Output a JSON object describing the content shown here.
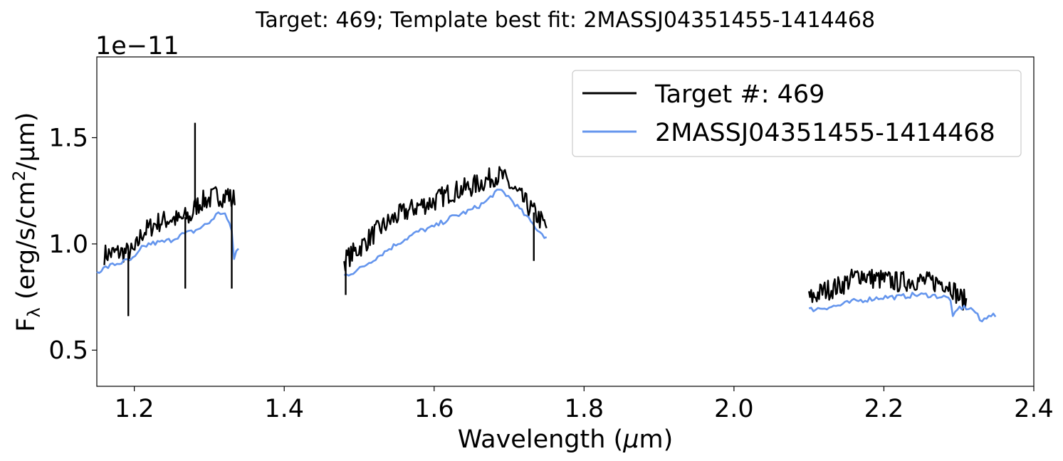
{
  "chart_data": {
    "type": "line",
    "title": "Target: 469; Template best fit: 2MASSJ04351455-1414468",
    "xlabel": "Wavelength (",
    "xlabel_mu": "μ",
    "xlabel_unit": "m)",
    "ylabel": "F",
    "ylabel_sub": "λ",
    "ylabel_unit": " (erg/s/cm",
    "ylabel_sup": "2",
    "ylabel_tail": "/μm)",
    "offset_text": "1e−11",
    "xlim": [
      1.15,
      2.4
    ],
    "ylim": [
      0.33,
      1.88
    ],
    "x_ticks": [
      1.2,
      1.4,
      1.6,
      1.8,
      2.0,
      2.2,
      2.4
    ],
    "x_tick_labels": [
      "1.2",
      "1.4",
      "1.6",
      "1.8",
      "2.0",
      "2.2",
      "2.4"
    ],
    "y_ticks": [
      0.5,
      1.0,
      1.5
    ],
    "y_tick_labels": [
      "0.5",
      "1.0",
      "1.5"
    ],
    "legend_position": "top-right",
    "series": [
      {
        "name": "Target #: 469",
        "color": "#000000",
        "segments": [
          {
            "x": [
              1.16,
              1.18,
              1.2,
              1.21,
              1.23,
              1.25,
              1.26,
              1.27,
              1.275,
              1.28,
              1.29,
              1.3,
              1.31,
              1.32,
              1.325,
              1.33,
              1.334
            ],
            "y": [
              0.95,
              0.96,
              0.96,
              1.05,
              1.1,
              1.12,
              1.11,
              1.13,
              1.12,
              1.17,
              1.2,
              1.21,
              1.23,
              1.22,
              1.24,
              1.2,
              1.22
            ]
          },
          {
            "x": [
              1.48,
              1.5,
              1.52,
              1.55,
              1.58,
              1.6,
              1.62,
              1.65,
              1.67,
              1.68,
              1.69,
              1.7,
              1.71,
              1.72,
              1.74,
              1.75
            ],
            "y": [
              0.92,
              0.98,
              1.05,
              1.13,
              1.18,
              1.2,
              1.24,
              1.27,
              1.3,
              1.32,
              1.32,
              1.28,
              1.24,
              1.2,
              1.12,
              1.08
            ]
          },
          {
            "x": [
              2.1,
              2.12,
              2.14,
              2.16,
              2.17,
              2.18,
              2.2,
              2.22,
              2.24,
              2.26,
              2.28,
              2.29,
              2.3,
              2.31
            ],
            "y": [
              0.74,
              0.78,
              0.8,
              0.84,
              0.86,
              0.84,
              0.83,
              0.82,
              0.83,
              0.82,
              0.82,
              0.8,
              0.75,
              0.73
            ]
          }
        ]
      },
      {
        "name": "2MASSJ04351455-1414468",
        "color": "#6495ed",
        "segments": [
          {
            "x": [
              1.15,
              1.17,
              1.19,
              1.2,
              1.21,
              1.22,
              1.24,
              1.25,
              1.26,
              1.28,
              1.3,
              1.31,
              1.32,
              1.33,
              1.332,
              1.335,
              1.34
            ],
            "y": [
              0.87,
              0.9,
              0.92,
              0.93,
              0.98,
              1.0,
              1.01,
              1.02,
              1.04,
              1.06,
              1.1,
              1.14,
              1.15,
              1.06,
              0.92,
              0.96,
              0.98
            ]
          },
          {
            "x": [
              1.48,
              1.5,
              1.52,
              1.55,
              1.58,
              1.6,
              1.62,
              1.65,
              1.67,
              1.68,
              1.69,
              1.7,
              1.71,
              1.72,
              1.74,
              1.75
            ],
            "y": [
              0.85,
              0.88,
              0.93,
              1.0,
              1.06,
              1.08,
              1.12,
              1.16,
              1.2,
              1.24,
              1.25,
              1.22,
              1.18,
              1.14,
              1.06,
              1.03
            ]
          },
          {
            "x": [
              2.1,
              2.12,
              2.14,
              2.16,
              2.18,
              2.2,
              2.22,
              2.24,
              2.26,
              2.28,
              2.29,
              2.292,
              2.3,
              2.31,
              2.32,
              2.33,
              2.34,
              2.35
            ],
            "y": [
              0.69,
              0.7,
              0.71,
              0.73,
              0.74,
              0.75,
              0.75,
              0.76,
              0.76,
              0.75,
              0.74,
              0.65,
              0.7,
              0.7,
              0.69,
              0.63,
              0.67,
              0.66
            ]
          }
        ]
      }
    ]
  }
}
